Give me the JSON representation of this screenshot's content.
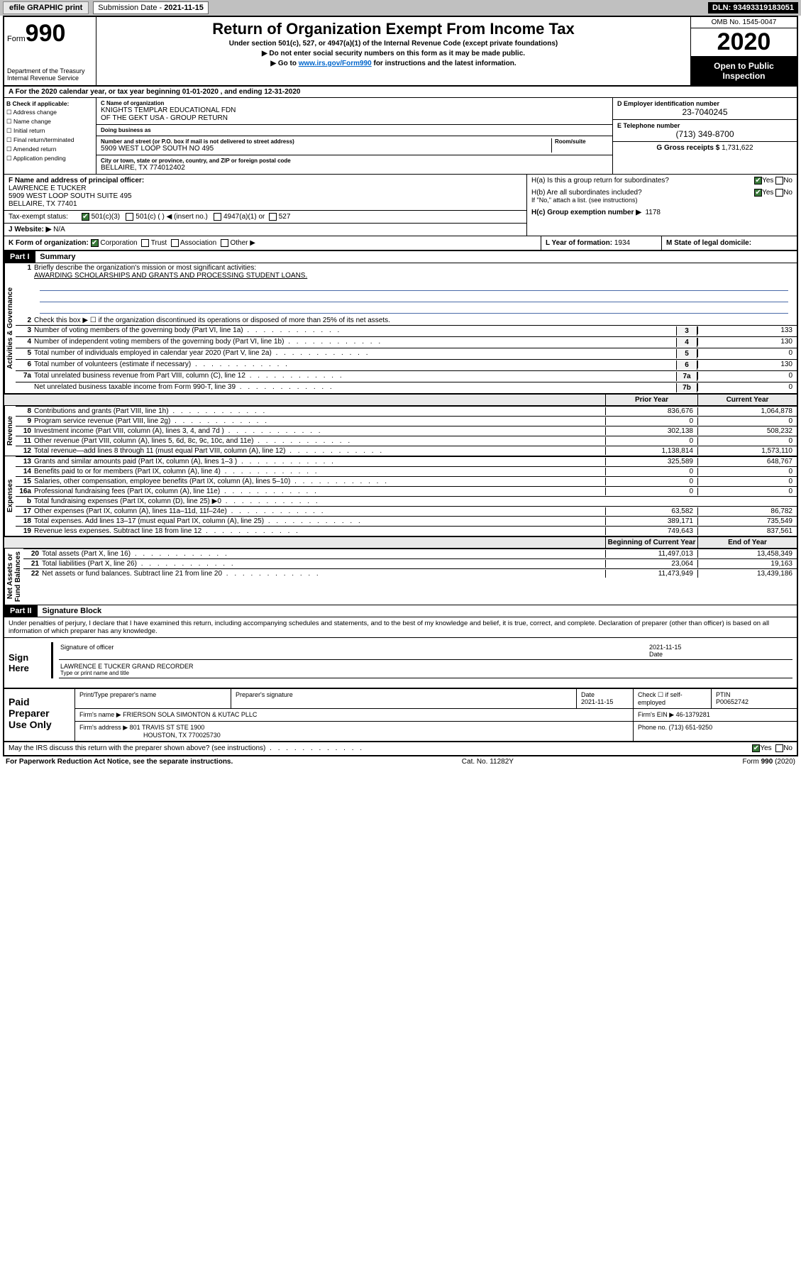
{
  "topbar": {
    "efile": "efile GRAPHIC print",
    "submission_label": "Submission Date - ",
    "submission_date": "2021-11-15",
    "dln_label": "DLN: ",
    "dln": "93493319183051"
  },
  "header": {
    "form_prefix": "Form",
    "form_number": "990",
    "dept": "Department of the Treasury\nInternal Revenue Service",
    "title": "Return of Organization Exempt From Income Tax",
    "subtitle": "Under section 501(c), 527, or 4947(a)(1) of the Internal Revenue Code (except private foundations)",
    "line1": "▶ Do not enter social security numbers on this form as it may be made public.",
    "line2_pre": "▶ Go to ",
    "line2_link": "www.irs.gov/Form990",
    "line2_post": " for instructions and the latest information.",
    "omb": "OMB No. 1545-0047",
    "year": "2020",
    "inspection": "Open to Public Inspection"
  },
  "row_a": "A For the 2020 calendar year, or tax year beginning 01-01-2020   , and ending 12-31-2020",
  "col_b": {
    "heading": "B Check if applicable:",
    "items": [
      "☐ Address change",
      "☐ Name change",
      "☐ Initial return",
      "☐ Final return/terminated",
      "☐ Amended return",
      "☐ Application pending"
    ]
  },
  "col_c": {
    "name_label": "C Name of organization",
    "name": "KNIGHTS TEMPLAR EDUCATIONAL FDN\nOF THE GEKT USA - GROUP RETURN",
    "dba_label": "Doing business as",
    "dba": "",
    "street_label": "Number and street (or P.O. box if mail is not delivered to street address)",
    "room_label": "Room/suite",
    "street": "5909 WEST LOOP SOUTH NO 495",
    "city_label": "City or town, state or province, country, and ZIP or foreign postal code",
    "city": "BELLAIRE, TX  774012402"
  },
  "col_de": {
    "d_label": "D Employer identification number",
    "d_val": "23-7040245",
    "e_label": "E Telephone number",
    "e_val": "(713) 349-8700",
    "g_label": "G Gross receipts $ ",
    "g_val": "1,731,622"
  },
  "block_f": {
    "f_label": "F  Name and address of principal officer:",
    "f_name": "LAWRENCE E TUCKER",
    "f_addr1": "5909 WEST LOOP SOUTH SUITE 495",
    "f_addr2": "BELLAIRE, TX  77401",
    "tax_exempt_label": "Tax-exempt status:",
    "tax_501c3": "501(c)(3)",
    "tax_501c": "501(c) (  ) ◀ (insert no.)",
    "tax_4947": "4947(a)(1) or",
    "tax_527": "527",
    "website_label": "J  Website: ▶",
    "website": "N/A",
    "k_label": "K Form of organization:",
    "k_corp": "Corporation",
    "k_trust": "Trust",
    "k_assoc": "Association",
    "k_other": "Other ▶"
  },
  "block_h": {
    "ha_label": "H(a)  Is this a group return for subordinates?",
    "yes": "Yes",
    "no": "No",
    "hb_label": "H(b)  Are all subordinates included?",
    "hb_note": "If \"No,\" attach a list. (see instructions)",
    "hc_label": "H(c)  Group exemption number ▶",
    "hc_val": "1178",
    "l_label": "L Year of formation: ",
    "l_val": "1934",
    "m_label": "M State of legal domicile:",
    "m_val": ""
  },
  "part1": {
    "tag": "Part I",
    "title": "Summary",
    "q1": "Briefly describe the organization's mission or most significant activities:",
    "q1_ans": "AWARDING SCHOLARSHIPS AND GRANTS AND PROCESSING STUDENT LOANS.",
    "q2": "Check this box ▶ ☐  if the organization discontinued its operations or disposed of more than 25% of its net assets.",
    "rows_ag": [
      {
        "n": "3",
        "d": "Number of voting members of the governing body (Part VI, line 1a)",
        "box": "3",
        "v": "133"
      },
      {
        "n": "4",
        "d": "Number of independent voting members of the governing body (Part VI, line 1b)",
        "box": "4",
        "v": "130"
      },
      {
        "n": "5",
        "d": "Total number of individuals employed in calendar year 2020 (Part V, line 2a)",
        "box": "5",
        "v": "0"
      },
      {
        "n": "6",
        "d": "Total number of volunteers (estimate if necessary)",
        "box": "6",
        "v": "130"
      },
      {
        "n": "7a",
        "d": "Total unrelated business revenue from Part VIII, column (C), line 12",
        "box": "7a",
        "v": "0"
      },
      {
        "n": "",
        "d": "Net unrelated business taxable income from Form 990-T, line 39",
        "box": "7b",
        "v": "0"
      }
    ],
    "col_prior": "Prior Year",
    "col_current": "Current Year",
    "rows_rev": [
      {
        "n": "8",
        "d": "Contributions and grants (Part VIII, line 1h)",
        "p": "836,676",
        "c": "1,064,878"
      },
      {
        "n": "9",
        "d": "Program service revenue (Part VIII, line 2g)",
        "p": "0",
        "c": "0"
      },
      {
        "n": "10",
        "d": "Investment income (Part VIII, column (A), lines 3, 4, and 7d )",
        "p": "302,138",
        "c": "508,232"
      },
      {
        "n": "11",
        "d": "Other revenue (Part VIII, column (A), lines 5, 6d, 8c, 9c, 10c, and 11e)",
        "p": "0",
        "c": "0"
      },
      {
        "n": "12",
        "d": "Total revenue—add lines 8 through 11 (must equal Part VIII, column (A), line 12)",
        "p": "1,138,814",
        "c": "1,573,110"
      }
    ],
    "rows_exp": [
      {
        "n": "13",
        "d": "Grants and similar amounts paid (Part IX, column (A), lines 1–3 )",
        "p": "325,589",
        "c": "648,767"
      },
      {
        "n": "14",
        "d": "Benefits paid to or for members (Part IX, column (A), line 4)",
        "p": "0",
        "c": "0"
      },
      {
        "n": "15",
        "d": "Salaries, other compensation, employee benefits (Part IX, column (A), lines 5–10)",
        "p": "0",
        "c": "0"
      },
      {
        "n": "16a",
        "d": "Professional fundraising fees (Part IX, column (A), line 11e)",
        "p": "0",
        "c": "0"
      },
      {
        "n": "b",
        "d": "Total fundraising expenses (Part IX, column (D), line 25) ▶0",
        "p": "",
        "c": ""
      },
      {
        "n": "17",
        "d": "Other expenses (Part IX, column (A), lines 11a–11d, 11f–24e)",
        "p": "63,582",
        "c": "86,782"
      },
      {
        "n": "18",
        "d": "Total expenses. Add lines 13–17 (must equal Part IX, column (A), line 25)",
        "p": "389,171",
        "c": "735,549"
      },
      {
        "n": "19",
        "d": "Revenue less expenses. Subtract line 18 from line 12",
        "p": "749,643",
        "c": "837,561"
      }
    ],
    "col_begin": "Beginning of Current Year",
    "col_end": "End of Year",
    "rows_net": [
      {
        "n": "20",
        "d": "Total assets (Part X, line 16)",
        "p": "11,497,013",
        "c": "13,458,349"
      },
      {
        "n": "21",
        "d": "Total liabilities (Part X, line 26)",
        "p": "23,064",
        "c": "19,163"
      },
      {
        "n": "22",
        "d": "Net assets or fund balances. Subtract line 21 from line 20",
        "p": "11,473,949",
        "c": "13,439,186"
      }
    ],
    "side_ag": "Activities & Governance",
    "side_rev": "Revenue",
    "side_exp": "Expenses",
    "side_net": "Net Assets or\nFund Balances"
  },
  "part2": {
    "tag": "Part II",
    "title": "Signature Block",
    "perjury": "Under penalties of perjury, I declare that I have examined this return, including accompanying schedules and statements, and to the best of my knowledge and belief, it is true, correct, and complete. Declaration of preparer (other than officer) is based on all information of which preparer has any knowledge.",
    "sign_here": "Sign Here",
    "sig_officer": "Signature of officer",
    "sig_date": "2021-11-15",
    "date_label": "Date",
    "officer_name": "LAWRENCE E TUCKER  GRAND RECORDER",
    "type_label": "Type or print name and title",
    "paid": "Paid Preparer Use Only",
    "prep_name_label": "Print/Type preparer's name",
    "prep_sig_label": "Preparer's signature",
    "prep_date_label": "Date",
    "prep_date": "2021-11-15",
    "self_emp": "Check ☐  if self-employed",
    "ptin_label": "PTIN",
    "ptin": "P00652742",
    "firm_name_label": "Firm's name    ▶",
    "firm_name": "FRIERSON SOLA SIMONTON & KUTAC PLLC",
    "firm_ein_label": "Firm's EIN ▶",
    "firm_ein": "46-1379281",
    "firm_addr_label": "Firm's address ▶",
    "firm_addr1": "801 TRAVIS ST STE 1900",
    "firm_addr2": "HOUSTON, TX  770025730",
    "phone_label": "Phone no. ",
    "phone": "(713) 651-9250",
    "discuss": "May the IRS discuss this return with the preparer shown above? (see instructions)",
    "paperwork": "For Paperwork Reduction Act Notice, see the separate instructions.",
    "catno": "Cat. No. 11282Y",
    "formno": "Form 990 (2020)"
  },
  "colors": {
    "link": "#0066cc",
    "check_green": "#3a7a3a",
    "grey_bg": "#eaeaea"
  }
}
